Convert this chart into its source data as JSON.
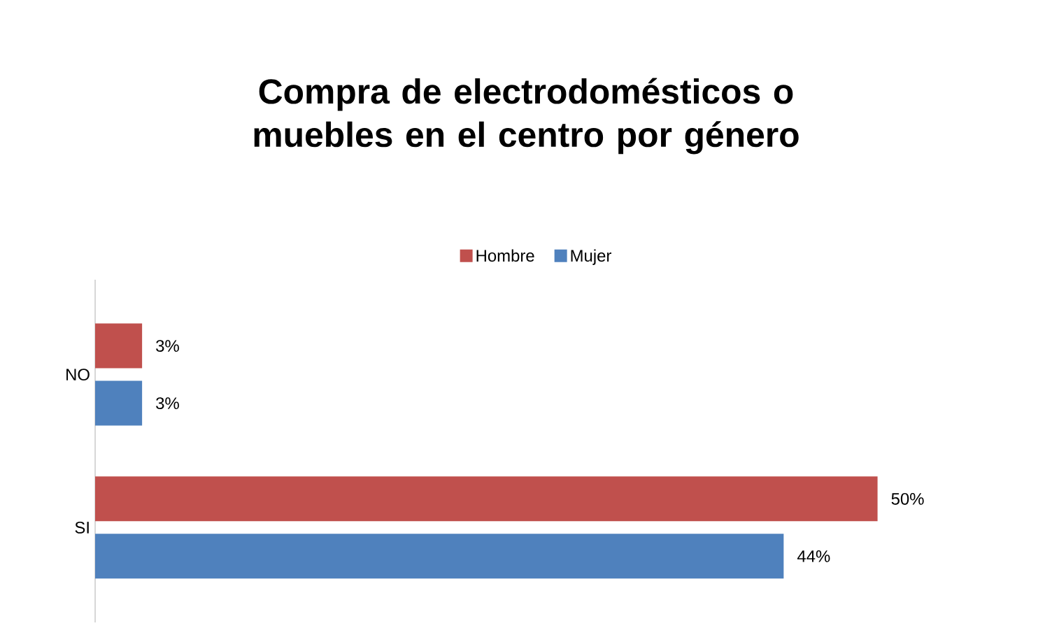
{
  "chart_data": {
    "type": "bar",
    "orientation": "horizontal",
    "title": "Compra de electrodomésticos o muebles en el centro por género",
    "categories": [
      "NO",
      "SI"
    ],
    "series": [
      {
        "name": "Hombre",
        "color": "#c0504d",
        "values": [
          3,
          50
        ],
        "value_labels": [
          "3%",
          "50%"
        ]
      },
      {
        "name": "Mujer",
        "color": "#4f81bd",
        "values": [
          3,
          44
        ],
        "value_labels": [
          "3%",
          "44%"
        ]
      }
    ],
    "tick_labels": "y",
    "legend": "top"
  }
}
